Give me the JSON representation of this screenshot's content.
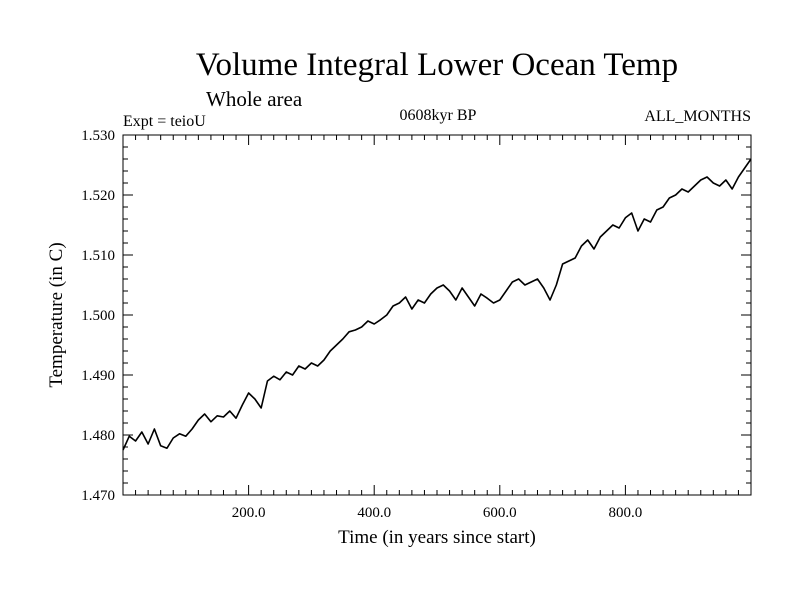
{
  "chart_data": {
    "type": "line",
    "title": "Volume Integral Lower Ocean Temp",
    "subtitle": "Whole area",
    "experiment_label": "Expt = teioU",
    "period_label": "0608kyr BP",
    "months_label": "ALL_MONTHS",
    "xlabel": "Time (in years since start)",
    "ylabel": "Temperature (in C)",
    "xlim": [
      0,
      1000
    ],
    "ylim": [
      1.47,
      1.53
    ],
    "x_ticks": [
      {
        "value": 200,
        "label": "200.0"
      },
      {
        "value": 400,
        "label": "400.0"
      },
      {
        "value": 600,
        "label": "600.0"
      },
      {
        "value": 800,
        "label": "800.0"
      }
    ],
    "y_ticks": [
      {
        "value": 1.47,
        "label": "1.470"
      },
      {
        "value": 1.48,
        "label": "1.480"
      },
      {
        "value": 1.49,
        "label": "1.490"
      },
      {
        "value": 1.5,
        "label": "1.500"
      },
      {
        "value": 1.51,
        "label": "1.510"
      },
      {
        "value": 1.52,
        "label": "1.520"
      },
      {
        "value": 1.53,
        "label": "1.530"
      }
    ],
    "grid": false,
    "color": "#000000",
    "series": [
      {
        "name": "Volume Integral Lower Ocean Temp",
        "x": [
          0,
          10,
          20,
          30,
          40,
          50,
          60,
          70,
          80,
          90,
          100,
          110,
          120,
          130,
          140,
          150,
          160,
          170,
          180,
          190,
          200,
          210,
          220,
          230,
          240,
          250,
          260,
          270,
          280,
          290,
          300,
          310,
          320,
          330,
          340,
          350,
          360,
          370,
          380,
          390,
          400,
          410,
          420,
          430,
          440,
          450,
          460,
          470,
          480,
          490,
          500,
          510,
          520,
          530,
          540,
          550,
          560,
          570,
          580,
          590,
          600,
          610,
          620,
          630,
          640,
          650,
          660,
          670,
          680,
          690,
          700,
          710,
          720,
          730,
          740,
          750,
          760,
          770,
          780,
          790,
          800,
          810,
          820,
          830,
          840,
          850,
          860,
          870,
          880,
          890,
          900,
          910,
          920,
          930,
          940,
          950,
          960,
          970,
          980,
          990,
          1000
        ],
        "values": [
          1.4775,
          1.4798,
          1.479,
          1.4805,
          1.4785,
          1.481,
          1.4782,
          1.4778,
          1.4795,
          1.4802,
          1.4798,
          1.481,
          1.4825,
          1.4835,
          1.4822,
          1.4832,
          1.483,
          1.484,
          1.4828,
          1.485,
          1.487,
          1.486,
          1.4845,
          1.489,
          1.4898,
          1.4892,
          1.4905,
          1.49,
          1.4915,
          1.491,
          1.492,
          1.4915,
          1.4925,
          1.494,
          1.495,
          1.496,
          1.4972,
          1.4975,
          1.498,
          1.499,
          1.4985,
          1.4992,
          1.5,
          1.5015,
          1.502,
          1.503,
          1.501,
          1.5025,
          1.502,
          1.5035,
          1.5045,
          1.505,
          1.504,
          1.5025,
          1.5045,
          1.503,
          1.5015,
          1.5035,
          1.5028,
          1.502,
          1.5025,
          1.504,
          1.5055,
          1.506,
          1.505,
          1.5055,
          1.506,
          1.5045,
          1.5025,
          1.505,
          1.5085,
          1.509,
          1.5095,
          1.5115,
          1.5125,
          1.511,
          1.513,
          1.514,
          1.515,
          1.5145,
          1.5162,
          1.517,
          1.514,
          1.516,
          1.5155,
          1.5175,
          1.518,
          1.5195,
          1.52,
          1.521,
          1.5205,
          1.5215,
          1.5225,
          1.523,
          1.522,
          1.5215,
          1.5225,
          1.521,
          1.523,
          1.5245,
          1.526
        ]
      }
    ]
  }
}
